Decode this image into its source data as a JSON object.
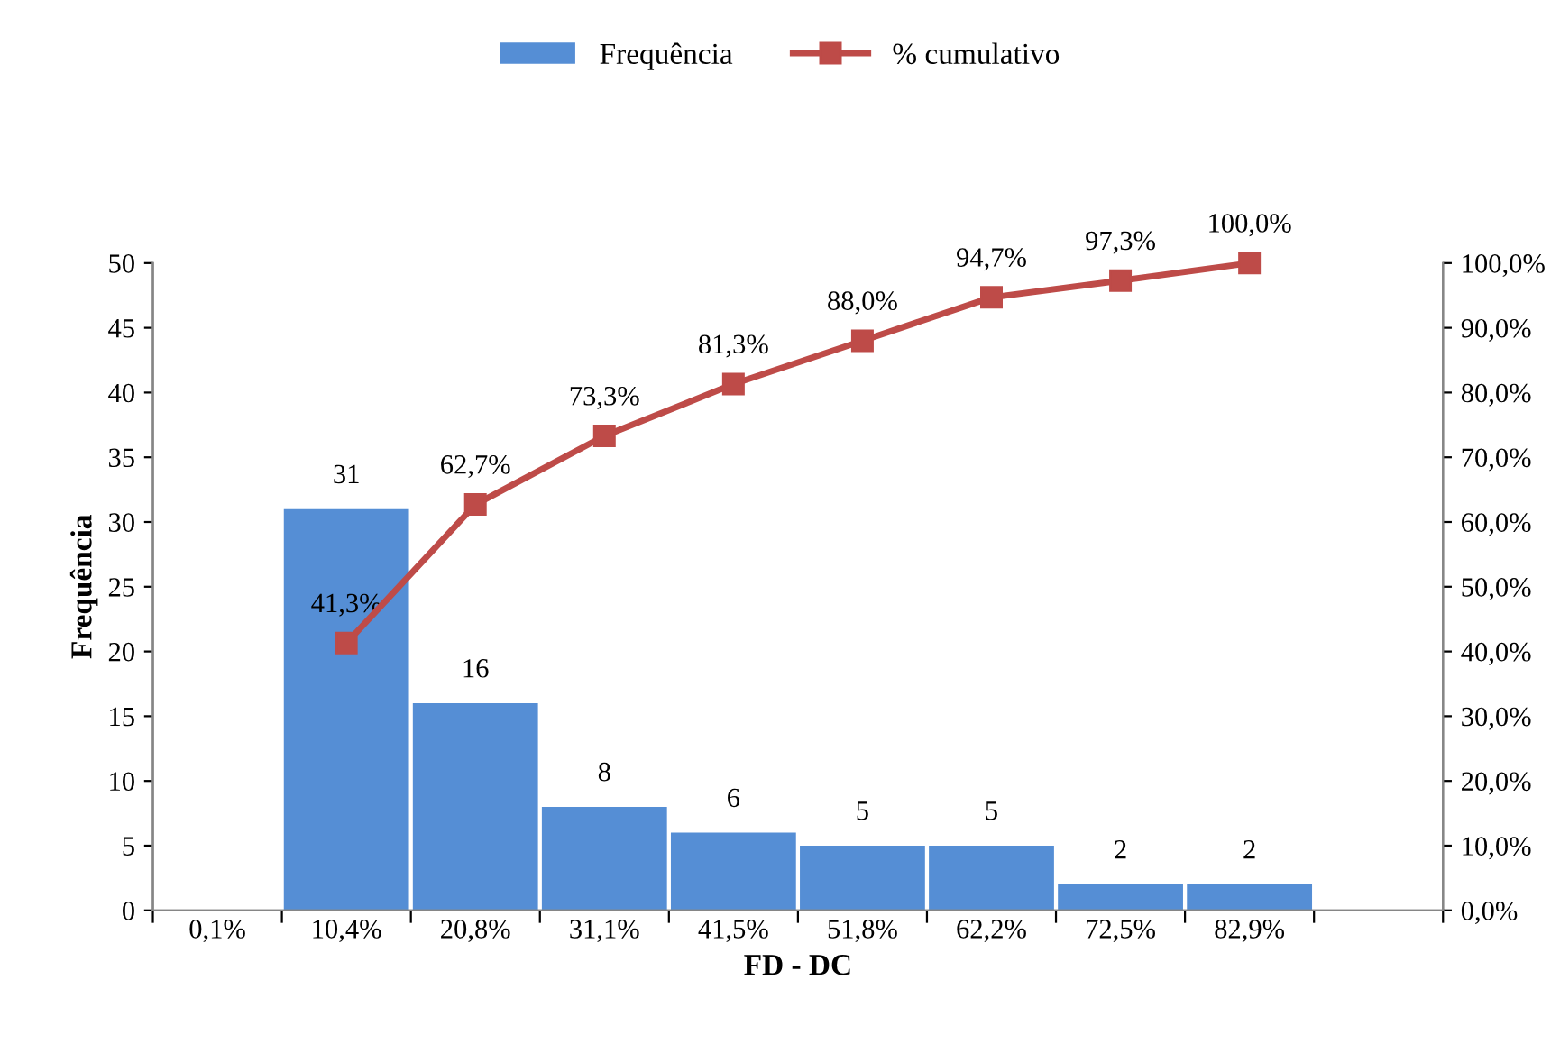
{
  "chart_data": {
    "type": "bar",
    "xlabel": "FD - DC",
    "ylabel": "Frequência",
    "categories": [
      "0,1%",
      "10,4%",
      "20,8%",
      "31,1%",
      "41,5%",
      "51,8%",
      "62,2%",
      "72,5%",
      "82,9%",
      null
    ],
    "series": [
      {
        "name": "Frequência",
        "color": "#558ed5",
        "values": [
          null,
          31,
          16,
          8,
          6,
          5,
          5,
          2,
          2,
          null
        ],
        "value_labels": [
          null,
          "31",
          "16",
          "8",
          "6",
          "5",
          "5",
          "2",
          "2",
          null
        ]
      },
      {
        "name": "% cumulativo",
        "type": "line",
        "axis": "y2",
        "color": "#be4b48",
        "marker": "square",
        "values": [
          null,
          41.3,
          62.7,
          73.3,
          81.3,
          88.0,
          94.7,
          97.3,
          100.0,
          null
        ],
        "value_labels": [
          null,
          "41,3%",
          "62,7%",
          "73,3%",
          "81,3%",
          "88,0%",
          "94,7%",
          "97,3%",
          "100,0%",
          null
        ]
      }
    ],
    "ylim": [
      0,
      50
    ],
    "yticks": [
      0,
      5,
      10,
      15,
      20,
      25,
      30,
      35,
      40,
      45,
      50
    ],
    "y2lim": [
      0,
      100
    ],
    "y2ticks": [
      {
        "value": 0,
        "label": "0,0%"
      },
      {
        "value": 10,
        "label": "10,0%"
      },
      {
        "value": 20,
        "label": "20,0%"
      },
      {
        "value": 30,
        "label": "30,0%"
      },
      {
        "value": 40,
        "label": "40,0%"
      },
      {
        "value": 50,
        "label": "50,0%"
      },
      {
        "value": 60,
        "label": "60,0%"
      },
      {
        "value": 70,
        "label": "70,0%"
      },
      {
        "value": 80,
        "label": "80,0%"
      },
      {
        "value": 90,
        "label": "90,0%"
      },
      {
        "value": 100,
        "label": "100,0%"
      }
    ],
    "grid": false,
    "legend": "top"
  }
}
